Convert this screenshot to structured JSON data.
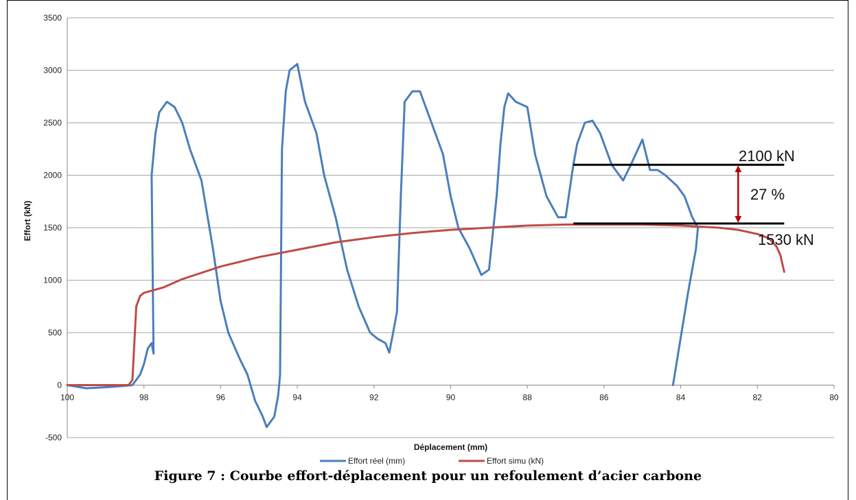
{
  "caption": "Figure 7 : Courbe effort-déplacement pour un refoulement d’acier carbone",
  "colors": {
    "reel": "#4a7ebb",
    "simu": "#be4b48",
    "annotation_arrow": "#c00000",
    "grid": "#888888"
  },
  "chart_data": {
    "type": "line",
    "title": "",
    "xlabel": "Déplacement (mm)",
    "ylabel": "Effort (kN)",
    "xlim": [
      100,
      80
    ],
    "ylim": [
      -500,
      3500
    ],
    "x_reversed": true,
    "x_ticks": [
      "100",
      "98",
      "96",
      "94",
      "92",
      "90",
      "88",
      "86",
      "84",
      "82",
      "80"
    ],
    "y_ticks": [
      "-500",
      "0",
      "500",
      "1000",
      "1500",
      "2000",
      "2500",
      "3000",
      "3500"
    ],
    "grid": "horizontal",
    "legend_position": "bottom",
    "series": [
      {
        "name": "Effort réel (mm)",
        "color": "#4a7ebb",
        "x": [
          100,
          99.5,
          99,
          98.6,
          98.3,
          98.1,
          98.0,
          97.9,
          97.8,
          97.75,
          97.8,
          97.7,
          97.6,
          97.4,
          97.2,
          97.0,
          96.8,
          96.5,
          96.2,
          96.0,
          95.8,
          95.5,
          95.3,
          95.1,
          94.9,
          94.8,
          94.6,
          94.5,
          94.45,
          94.4,
          94.3,
          94.2,
          94.0,
          93.8,
          93.7,
          93.5,
          93.3,
          93.0,
          92.7,
          92.4,
          92.1,
          91.9,
          91.7,
          91.6,
          91.5,
          91.4,
          91.3,
          91.2,
          91.0,
          90.8,
          90.5,
          90.2,
          90.0,
          89.8,
          89.5,
          89.2,
          89.0,
          88.8,
          88.7,
          88.6,
          88.5,
          88.3,
          88.0,
          87.8,
          87.5,
          87.2,
          87.0,
          86.8,
          86.7,
          86.5,
          86.3,
          86.1,
          86.0,
          85.8,
          85.5,
          85.3,
          85.0,
          84.8,
          84.6,
          84.4,
          84.1,
          83.9,
          83.7,
          83.55,
          83.6,
          83.8,
          84.0,
          84.2
        ],
        "y": [
          0,
          -30,
          -20,
          -10,
          0,
          100,
          200,
          350,
          400,
          300,
          2000,
          2400,
          2600,
          2700,
          2650,
          2500,
          2250,
          1950,
          1300,
          800,
          500,
          250,
          100,
          -150,
          -300,
          -400,
          -300,
          -100,
          100,
          2250,
          2800,
          3000,
          3060,
          2700,
          2600,
          2400,
          2000,
          1600,
          1100,
          750,
          500,
          440,
          400,
          310,
          500,
          700,
          1800,
          2700,
          2800,
          2800,
          2500,
          2200,
          1800,
          1500,
          1300,
          1050,
          1100,
          1800,
          2300,
          2650,
          2780,
          2700,
          2650,
          2200,
          1800,
          1600,
          1600,
          2100,
          2300,
          2500,
          2520,
          2400,
          2300,
          2100,
          1950,
          2100,
          2340,
          2050,
          2050,
          2000,
          1900,
          1800,
          1600,
          1500,
          1300,
          900,
          450,
          0
        ]
      },
      {
        "name": "Effort simu (kN)",
        "color": "#be4b48",
        "x": [
          100,
          99,
          98.4,
          98.3,
          98.2,
          98.1,
          98.0,
          97.5,
          97.0,
          96.0,
          95.0,
          94.0,
          93.0,
          92.0,
          91.0,
          90.0,
          89.0,
          88.0,
          87.0,
          86.0,
          85.0,
          84.0,
          83.0,
          82.5,
          82.0,
          81.7,
          81.5,
          81.4,
          81.3
        ],
        "y": [
          0,
          0,
          0,
          50,
          750,
          850,
          880,
          930,
          1010,
          1130,
          1220,
          1290,
          1360,
          1410,
          1450,
          1480,
          1500,
          1520,
          1530,
          1530,
          1530,
          1520,
          1500,
          1480,
          1440,
          1400,
          1320,
          1240,
          1080
        ]
      }
    ],
    "annotations": {
      "upper_value": "2100",
      "upper_unit": "kN",
      "lower_value": "1530",
      "lower_unit": "kN",
      "difference": "27 %",
      "upper_line_y": 2100,
      "lower_line_y": 1540,
      "line_x_from": 86.8,
      "line_x_to": 81.3,
      "arrow_x": 82.5
    }
  }
}
